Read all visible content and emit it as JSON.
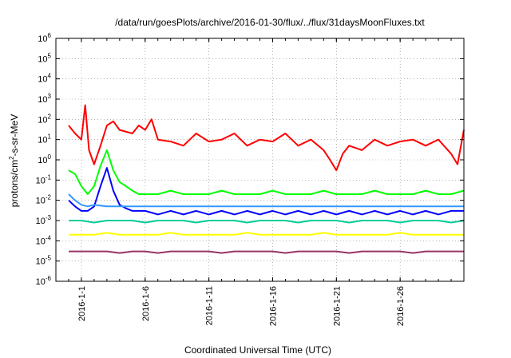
{
  "chart_data": {
    "type": "line",
    "title": "/data/run/goesPlots/archive/2016-01-30/flux/../flux/31daysMoonFluxes.txt",
    "xlabel": "Coordinated Universal Time (UTC)",
    "ylabel": "protons/cm²-s-sr-MeV",
    "ylabel_base": "protons/cm",
    "ylabel_sup": "2",
    "ylabel_rest": "-s-sr-MeV",
    "yscale": "log",
    "ylim": [
      1e-06,
      1000000.0
    ],
    "xlim": [
      "2015-12-30",
      "2016-01-31"
    ],
    "grid": true,
    "y_ticks": [
      {
        "base": "10",
        "exp": "-6",
        "value": 1e-06
      },
      {
        "base": "10",
        "exp": "-5",
        "value": 1e-05
      },
      {
        "base": "10",
        "exp": "-4",
        "value": 0.0001
      },
      {
        "base": "10",
        "exp": "-3",
        "value": 0.001
      },
      {
        "base": "10",
        "exp": "-2",
        "value": 0.01
      },
      {
        "base": "10",
        "exp": "-1",
        "value": 0.1
      },
      {
        "base": "10",
        "exp": "0",
        "value": 1
      },
      {
        "base": "10",
        "exp": "1",
        "value": 10
      },
      {
        "base": "10",
        "exp": "2",
        "value": 100
      },
      {
        "base": "10",
        "exp": "3",
        "value": 1000
      },
      {
        "base": "10",
        "exp": "4",
        "value": 10000
      },
      {
        "base": "10",
        "exp": "5",
        "value": 100000
      },
      {
        "base": "10",
        "exp": "6",
        "value": 1000000
      }
    ],
    "x_ticks": [
      {
        "label": "2016-1-1",
        "day": 1
      },
      {
        "label": "2016-1-6",
        "day": 6
      },
      {
        "label": "2016-1-11",
        "day": 11
      },
      {
        "label": "2016-1-16",
        "day": 16
      },
      {
        "label": "2016-1-21",
        "day": 21
      },
      {
        "label": "2016-1-26",
        "day": 26
      }
    ],
    "series": [
      {
        "color": "#993366",
        "x": [
          0,
          1,
          2,
          3,
          4,
          5,
          6,
          7,
          8,
          9,
          10,
          11,
          12,
          13,
          14,
          15,
          16,
          17,
          18,
          19,
          20,
          21,
          22,
          23,
          24,
          25,
          26,
          27,
          28,
          29,
          30,
          31
        ],
        "y": [
          3e-05,
          3e-05,
          3e-05,
          3e-05,
          2.5e-05,
          3e-05,
          3e-05,
          2.5e-05,
          3e-05,
          3e-05,
          3e-05,
          3e-05,
          2.5e-05,
          3e-05,
          3e-05,
          3e-05,
          3e-05,
          2.5e-05,
          3e-05,
          3e-05,
          3e-05,
          3e-05,
          2.5e-05,
          3e-05,
          3e-05,
          3e-05,
          3e-05,
          2.5e-05,
          3e-05,
          3e-05,
          3e-05,
          3e-05
        ]
      },
      {
        "color": "#ffff00",
        "x": [
          0,
          1,
          2,
          3,
          4,
          5,
          6,
          7,
          8,
          9,
          10,
          11,
          12,
          13,
          14,
          15,
          16,
          17,
          18,
          19,
          20,
          21,
          22,
          23,
          24,
          25,
          26,
          27,
          28,
          29,
          30,
          31
        ],
        "y": [
          0.0002,
          0.0002,
          0.0002,
          0.00025,
          0.0002,
          0.0002,
          0.0002,
          0.0002,
          0.00025,
          0.0002,
          0.0002,
          0.0002,
          0.0002,
          0.0002,
          0.00025,
          0.0002,
          0.0002,
          0.0002,
          0.0002,
          0.0002,
          0.00025,
          0.0002,
          0.0002,
          0.0002,
          0.0002,
          0.0002,
          0.00025,
          0.0002,
          0.0002,
          0.0002,
          0.0002,
          0.0002
        ]
      },
      {
        "color": "#00cc99",
        "x": [
          0,
          1,
          2,
          3,
          4,
          5,
          6,
          7,
          8,
          9,
          10,
          11,
          12,
          13,
          14,
          15,
          16,
          17,
          18,
          19,
          20,
          21,
          22,
          23,
          24,
          25,
          26,
          27,
          28,
          29,
          30,
          31
        ],
        "y": [
          0.001,
          0.001,
          0.0008,
          0.001,
          0.001,
          0.001,
          0.0008,
          0.001,
          0.001,
          0.001,
          0.0008,
          0.001,
          0.001,
          0.001,
          0.0008,
          0.001,
          0.001,
          0.001,
          0.0008,
          0.001,
          0.001,
          0.001,
          0.0008,
          0.001,
          0.001,
          0.001,
          0.0008,
          0.001,
          0.001,
          0.001,
          0.0008,
          0.001
        ]
      },
      {
        "color": "#00ff00",
        "x": [
          0,
          0.5,
          1,
          1.5,
          2,
          2.5,
          3,
          3.5,
          4,
          4.5,
          5,
          5.5,
          6,
          7,
          8,
          9,
          10,
          11,
          12,
          13,
          14,
          15,
          16,
          17,
          18,
          19,
          20,
          21,
          22,
          23,
          24,
          25,
          26,
          27,
          28,
          29,
          30,
          31
        ],
        "y": [
          0.3,
          0.2,
          0.05,
          0.02,
          0.05,
          0.5,
          3,
          0.3,
          0.08,
          0.05,
          0.03,
          0.02,
          0.02,
          0.02,
          0.03,
          0.02,
          0.02,
          0.02,
          0.03,
          0.02,
          0.02,
          0.02,
          0.03,
          0.02,
          0.02,
          0.02,
          0.03,
          0.02,
          0.02,
          0.02,
          0.03,
          0.02,
          0.02,
          0.02,
          0.03,
          0.02,
          0.02,
          0.03
        ]
      },
      {
        "color": "#0000ff",
        "x": [
          0,
          0.5,
          1,
          1.5,
          2,
          2.5,
          3,
          3.5,
          4,
          4.5,
          5,
          5.5,
          6,
          7,
          8,
          9,
          10,
          11,
          12,
          13,
          14,
          15,
          16,
          17,
          18,
          19,
          20,
          21,
          22,
          23,
          24,
          25,
          26,
          27,
          28,
          29,
          30,
          31
        ],
        "y": [
          0.01,
          0.005,
          0.003,
          0.003,
          0.005,
          0.05,
          0.4,
          0.03,
          0.006,
          0.004,
          0.003,
          0.003,
          0.003,
          0.002,
          0.003,
          0.002,
          0.003,
          0.002,
          0.003,
          0.002,
          0.003,
          0.002,
          0.003,
          0.002,
          0.003,
          0.002,
          0.003,
          0.002,
          0.003,
          0.002,
          0.003,
          0.002,
          0.003,
          0.002,
          0.003,
          0.002,
          0.003,
          0.003
        ]
      },
      {
        "color": "#3399ff",
        "x": [
          0,
          0.5,
          1,
          1.5,
          2,
          3,
          4,
          5,
          6,
          7,
          8,
          9,
          10,
          11,
          12,
          13,
          14,
          15,
          16,
          17,
          18,
          19,
          20,
          21,
          22,
          23,
          24,
          25,
          26,
          27,
          28,
          29,
          30,
          31
        ],
        "y": [
          0.02,
          0.01,
          0.006,
          0.005,
          0.006,
          0.005,
          0.005,
          0.005,
          0.005,
          0.005,
          0.005,
          0.005,
          0.005,
          0.005,
          0.005,
          0.005,
          0.005,
          0.005,
          0.005,
          0.005,
          0.005,
          0.005,
          0.005,
          0.005,
          0.005,
          0.005,
          0.005,
          0.005,
          0.005,
          0.005,
          0.005,
          0.005,
          0.005,
          0.005
        ]
      },
      {
        "color": "#ff0000",
        "x": [
          0,
          0.5,
          1,
          1.3,
          1.6,
          2,
          2.5,
          3,
          3.5,
          4,
          5,
          5.5,
          6,
          6.5,
          7,
          8,
          9,
          10,
          11,
          12,
          13,
          14,
          15,
          16,
          17,
          18,
          19,
          20,
          20.5,
          21,
          21.5,
          22,
          23,
          24,
          25,
          26,
          27,
          28,
          29,
          30,
          30.5,
          31
        ],
        "y": [
          50,
          20,
          10,
          500,
          3,
          0.6,
          5,
          50,
          80,
          30,
          20,
          50,
          30,
          100,
          10,
          8,
          5,
          20,
          8,
          10,
          20,
          5,
          10,
          8,
          20,
          5,
          10,
          3,
          1,
          0.3,
          2,
          5,
          3,
          10,
          5,
          8,
          10,
          5,
          10,
          2,
          0.6,
          30
        ]
      }
    ]
  }
}
